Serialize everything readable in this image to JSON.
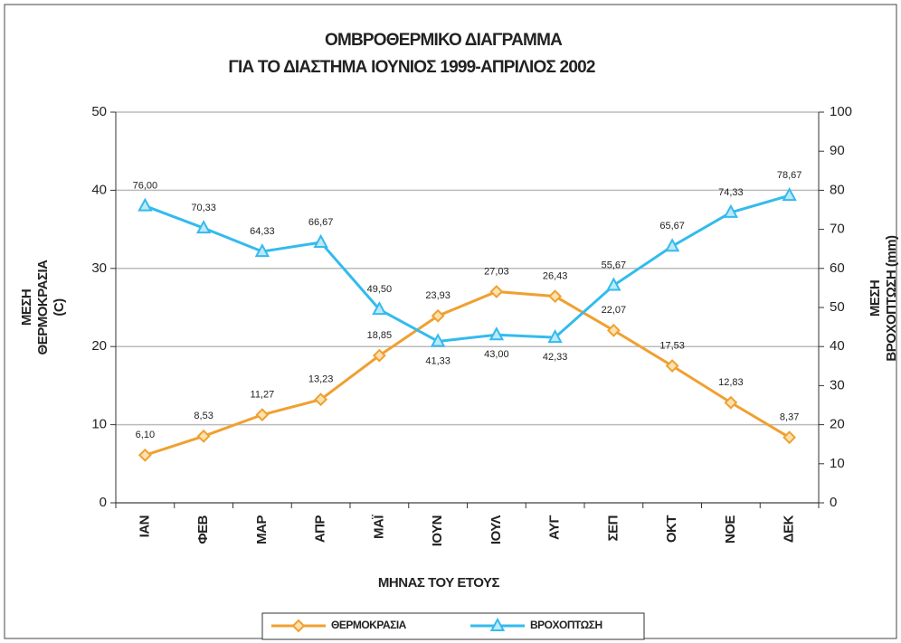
{
  "chart_data": {
    "type": "line",
    "title": "ΟΜΒΡΟΘΕΡΜΙΚΟ ΔΙΑΓΡΑΜΜΑ",
    "subtitle": "ΓΙΑ ΤΟ ΔΙΑΣΤΗΜΑ ΙΟΥΝΙΟΣ 1999-ΑΠΡΙΛΙΟΣ 2002",
    "ylabel": [
      "ΜΕΣΗ",
      "ΘΕΡΜΟΚΡΑΣΙΑ",
      "(C)"
    ],
    "y2label": [
      "ΜΕΣΗ",
      "ΒΡΟΧΟΠΤΩΣΗ (mm)"
    ],
    "xlabel": "ΜΗΝΑΣ ΤΟΥ ΕΤΟΥΣ",
    "categories": [
      "ΙΑΝ",
      "ΦΕΒ",
      "ΜΑΡ",
      "ΑΠΡ",
      "ΜΑΪ",
      "ΙΟΥΝ",
      "ΙΟΥΛ",
      "ΑΥΓ",
      "ΣΕΠ",
      "ΟΚΤ",
      "ΝΟΕ",
      "ΔΕΚ"
    ],
    "series": [
      {
        "name": "ΘΕΡΜΟΚΡΑΣΙΑ",
        "color": "#f0a030",
        "marker": "diamond",
        "values": [
          6.1,
          8.53,
          11.27,
          13.23,
          18.85,
          23.93,
          27.03,
          26.43,
          22.07,
          17.53,
          12.83,
          8.37
        ],
        "value_labels": [
          "6,10",
          "8,53",
          "11,27",
          "13,23",
          "18,85",
          "23,93",
          "27,03",
          "26,43",
          "22,07",
          "17,53",
          "12,83",
          "8,37"
        ]
      },
      {
        "name": "ΒΡΟΧΟΠΤΩΣΗ",
        "color": "#33bbee",
        "marker": "triangle",
        "axis": "y2",
        "values": [
          76.0,
          70.33,
          64.33,
          66.67,
          49.5,
          41.33,
          43.0,
          42.33,
          55.67,
          65.67,
          74.33,
          78.67
        ],
        "value_labels": [
          "76,00",
          "70,33",
          "64,33",
          "66,67",
          "49,50",
          "41,33",
          "43,00",
          "42,33",
          "55,67",
          "65,67",
          "74,33",
          "78,67"
        ]
      }
    ],
    "ylim": [
      0,
      50
    ],
    "yticks": [
      0,
      10,
      20,
      30,
      40,
      50
    ],
    "y2lim": [
      0,
      100
    ],
    "y2ticks": [
      0,
      10,
      20,
      30,
      40,
      50,
      60,
      70,
      80,
      90,
      100
    ],
    "grid": true,
    "legend": "bottom"
  }
}
